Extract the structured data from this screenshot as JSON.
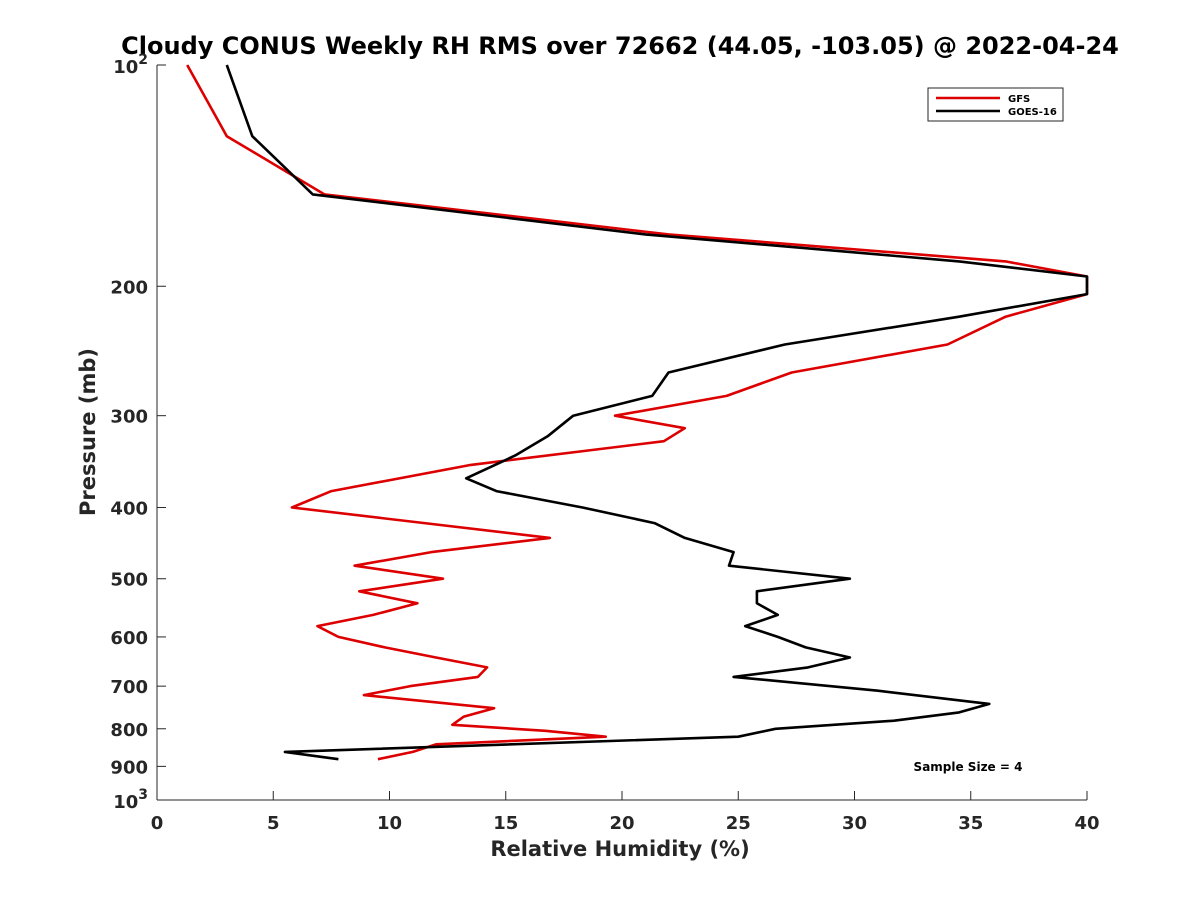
{
  "chart_data": {
    "type": "line",
    "title": "Cloudy CONUS Weekly RH RMS over 72662 (44.05, -103.05) @ 2022-04-24",
    "xlabel": "Relative Humidity (%)",
    "ylabel": "Pressure (mb)",
    "xlim": [
      0,
      40
    ],
    "ylim": [
      100,
      1000
    ],
    "y_scale": "log",
    "y_reversed": true,
    "x_ticks": [
      "0",
      "5",
      "10",
      "15",
      "20",
      "25",
      "30",
      "35",
      "40"
    ],
    "y_ticks": [
      {
        "value": 100,
        "base": "10",
        "exp": "2"
      },
      {
        "value": 200,
        "label": "200"
      },
      {
        "value": 300,
        "label": "300"
      },
      {
        "value": 400,
        "label": "400"
      },
      {
        "value": 500,
        "label": "500"
      },
      {
        "value": 600,
        "label": "600"
      },
      {
        "value": 700,
        "label": "700"
      },
      {
        "value": 800,
        "label": "800"
      },
      {
        "value": 900,
        "label": "900"
      },
      {
        "value": 1000,
        "base": "10",
        "exp": "3"
      }
    ],
    "grid": false,
    "legend_position": "top-right",
    "annotation": "Sample Size = 4",
    "series": [
      {
        "name": "GFS",
        "color": "#dd0000",
        "points": [
          [
            1.3,
            100
          ],
          [
            3.0,
            125
          ],
          [
            7.2,
            150
          ],
          [
            22.0,
            170
          ],
          [
            36.5,
            185
          ],
          [
            40.0,
            194
          ],
          [
            40.0,
            205
          ],
          [
            36.5,
            220
          ],
          [
            34.0,
            240
          ],
          [
            27.3,
            262
          ],
          [
            24.5,
            282
          ],
          [
            19.7,
            300
          ],
          [
            22.7,
            312
          ],
          [
            21.8,
            325
          ],
          [
            13.5,
            350
          ],
          [
            7.5,
            380
          ],
          [
            5.8,
            400
          ],
          [
            16.9,
            440
          ],
          [
            11.8,
            460
          ],
          [
            8.5,
            480
          ],
          [
            12.3,
            500
          ],
          [
            8.7,
            520
          ],
          [
            11.2,
            540
          ],
          [
            9.3,
            560
          ],
          [
            6.9,
            580
          ],
          [
            7.8,
            600
          ],
          [
            9.8,
            620
          ],
          [
            12.0,
            640
          ],
          [
            14.2,
            660
          ],
          [
            13.8,
            680
          ],
          [
            10.9,
            700
          ],
          [
            8.9,
            720
          ],
          [
            14.5,
            750
          ],
          [
            13.2,
            770
          ],
          [
            12.7,
            790
          ],
          [
            16.7,
            805
          ],
          [
            19.3,
            820
          ],
          [
            12.0,
            840
          ],
          [
            11.0,
            860
          ],
          [
            9.5,
            880
          ]
        ]
      },
      {
        "name": "GOES-16",
        "color": "#000000",
        "points": [
          [
            3.0,
            100
          ],
          [
            4.1,
            125
          ],
          [
            6.7,
            150
          ],
          [
            21.0,
            170
          ],
          [
            34.5,
            185
          ],
          [
            40.0,
            194
          ],
          [
            40.0,
            205
          ],
          [
            34.5,
            220
          ],
          [
            27.0,
            240
          ],
          [
            22.0,
            262
          ],
          [
            21.3,
            282
          ],
          [
            17.9,
            300
          ],
          [
            16.8,
            320
          ],
          [
            15.4,
            340
          ],
          [
            13.3,
            365
          ],
          [
            14.6,
            380
          ],
          [
            18.3,
            400
          ],
          [
            21.4,
            420
          ],
          [
            22.7,
            440
          ],
          [
            24.8,
            460
          ],
          [
            24.6,
            480
          ],
          [
            29.8,
            500
          ],
          [
            25.8,
            520
          ],
          [
            25.8,
            540
          ],
          [
            26.7,
            560
          ],
          [
            25.3,
            580
          ],
          [
            26.7,
            600
          ],
          [
            27.9,
            620
          ],
          [
            29.8,
            640
          ],
          [
            28.0,
            660
          ],
          [
            24.8,
            680
          ],
          [
            31.0,
            710
          ],
          [
            35.8,
            740
          ],
          [
            34.5,
            760
          ],
          [
            31.7,
            780
          ],
          [
            26.6,
            800
          ],
          [
            25.0,
            820
          ],
          [
            5.5,
            860
          ],
          [
            7.8,
            880
          ]
        ]
      }
    ]
  }
}
